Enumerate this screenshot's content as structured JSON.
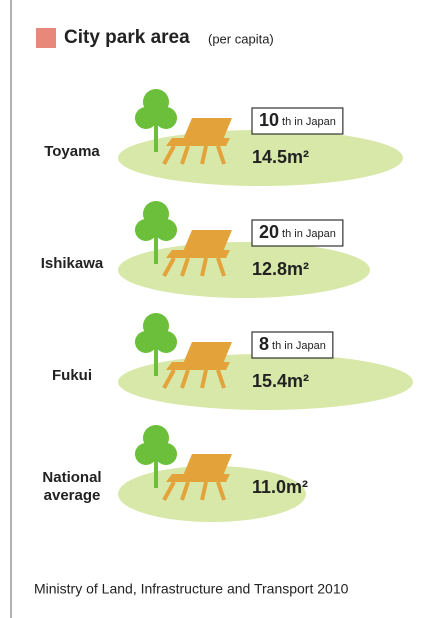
{
  "title": "City park area",
  "subtitle": "(per capita)",
  "items": [
    {
      "label": "Toyama",
      "rank": "10",
      "rank_suffix": "th in Japan",
      "value": "14.5m²"
    },
    {
      "label": "Ishikawa",
      "rank": "20",
      "rank_suffix": "th in Japan",
      "value": "12.8m²"
    },
    {
      "label": "Fukui",
      "rank": "8",
      "rank_suffix": "th in Japan",
      "value": "15.4m²"
    },
    {
      "label": [
        "National",
        "average"
      ],
      "value": "11.0m²"
    }
  ],
  "source": "Ministry of Land, Infrastructure and Transport 2010"
}
